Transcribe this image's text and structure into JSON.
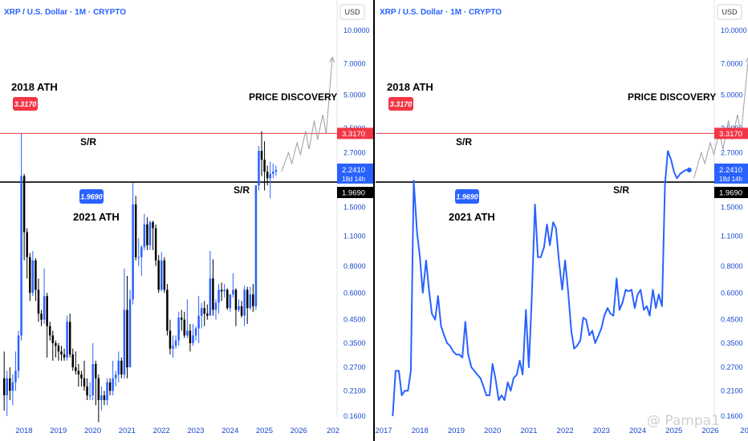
{
  "chart_data": [
    {
      "type": "candlestick",
      "title": "XRP / U.S. Dollar · 1M · CRYPTO",
      "currency": "USD",
      "yscale": "log",
      "ylim": [
        0.15,
        11.5
      ],
      "xlim": [
        2017.7,
        2026.9
      ],
      "y_ticks": [
        "10.0000",
        "7.0000",
        "5.0000",
        "3.5000",
        "2.7000",
        "2.1000",
        "1.5000",
        "1.1000",
        "0.8000",
        "0.6000",
        "0.4500",
        "0.3500",
        "0.2700",
        "0.2100",
        "0.1600"
      ],
      "x_ticks": [
        "2018",
        "2019",
        "2020",
        "2021",
        "2022",
        "2023",
        "2024",
        "2025",
        "2026",
        "202"
      ],
      "annotations": {
        "ath_2018": "2018 ATH",
        "ath_2018_value": "3.3170",
        "ath_2021": "2021 ATH",
        "ath_2021_value": "1.9690",
        "sr_upper": "S/R",
        "sr_lower": "S/R",
        "price_discovery": "PRICE DISCOVERY"
      },
      "price_labels": {
        "resistance": "3.3170",
        "current": "2.2410",
        "countdown": "18d 14h",
        "support": "1.9690"
      },
      "levels": {
        "resistance": 3.317,
        "support": 1.969,
        "current": 2.241
      },
      "candles": [
        {
          "o": 0.24,
          "h": 0.32,
          "l": 0.17,
          "c": 0.2
        },
        {
          "o": 0.2,
          "h": 0.26,
          "l": 0.16,
          "c": 0.24
        },
        {
          "o": 0.24,
          "h": 0.27,
          "l": 0.19,
          "c": 0.21
        },
        {
          "o": 0.21,
          "h": 0.25,
          "l": 0.18,
          "c": 0.23
        },
        {
          "o": 0.23,
          "h": 0.32,
          "l": 0.21,
          "c": 0.26
        },
        {
          "o": 0.26,
          "h": 0.4,
          "l": 0.24,
          "c": 0.38
        },
        {
          "o": 0.38,
          "h": 3.317,
          "l": 0.36,
          "c": 2.1
        },
        {
          "o": 2.1,
          "h": 2.15,
          "l": 0.85,
          "c": 1.15
        },
        {
          "o": 1.15,
          "h": 1.2,
          "l": 0.7,
          "c": 0.88
        },
        {
          "o": 0.88,
          "h": 0.92,
          "l": 0.55,
          "c": 0.6
        },
        {
          "o": 0.6,
          "h": 0.94,
          "l": 0.58,
          "c": 0.85
        },
        {
          "o": 0.85,
          "h": 0.87,
          "l": 0.55,
          "c": 0.62
        },
        {
          "o": 0.62,
          "h": 0.7,
          "l": 0.44,
          "c": 0.48
        },
        {
          "o": 0.48,
          "h": 0.5,
          "l": 0.42,
          "c": 0.45
        },
        {
          "o": 0.45,
          "h": 0.78,
          "l": 0.43,
          "c": 0.58
        },
        {
          "o": 0.58,
          "h": 0.6,
          "l": 0.3,
          "c": 0.42
        },
        {
          "o": 0.42,
          "h": 0.44,
          "l": 0.36,
          "c": 0.38
        },
        {
          "o": 0.38,
          "h": 0.4,
          "l": 0.29,
          "c": 0.35
        },
        {
          "o": 0.35,
          "h": 0.36,
          "l": 0.3,
          "c": 0.34
        },
        {
          "o": 0.34,
          "h": 0.35,
          "l": 0.29,
          "c": 0.32
        },
        {
          "o": 0.32,
          "h": 0.34,
          "l": 0.29,
          "c": 0.31
        },
        {
          "o": 0.31,
          "h": 0.33,
          "l": 0.29,
          "c": 0.3
        },
        {
          "o": 0.3,
          "h": 0.47,
          "l": 0.29,
          "c": 0.44
        },
        {
          "o": 0.44,
          "h": 0.48,
          "l": 0.3,
          "c": 0.31
        },
        {
          "o": 0.31,
          "h": 0.33,
          "l": 0.26,
          "c": 0.27
        },
        {
          "o": 0.27,
          "h": 0.32,
          "l": 0.25,
          "c": 0.26
        },
        {
          "o": 0.26,
          "h": 0.28,
          "l": 0.22,
          "c": 0.25
        },
        {
          "o": 0.25,
          "h": 0.26,
          "l": 0.22,
          "c": 0.24
        },
        {
          "o": 0.24,
          "h": 0.29,
          "l": 0.21,
          "c": 0.22
        },
        {
          "o": 0.22,
          "h": 0.24,
          "l": 0.19,
          "c": 0.2
        },
        {
          "o": 0.2,
          "h": 0.23,
          "l": 0.19,
          "c": 0.2
        },
        {
          "o": 0.2,
          "h": 0.35,
          "l": 0.19,
          "c": 0.28
        },
        {
          "o": 0.28,
          "h": 0.29,
          "l": 0.18,
          "c": 0.24
        },
        {
          "o": 0.24,
          "h": 0.25,
          "l": 0.15,
          "c": 0.19
        },
        {
          "o": 0.19,
          "h": 0.22,
          "l": 0.17,
          "c": 0.2
        },
        {
          "o": 0.2,
          "h": 0.21,
          "l": 0.18,
          "c": 0.19
        },
        {
          "o": 0.19,
          "h": 0.24,
          "l": 0.18,
          "c": 0.23
        },
        {
          "o": 0.23,
          "h": 0.24,
          "l": 0.2,
          "c": 0.21
        },
        {
          "o": 0.21,
          "h": 0.29,
          "l": 0.2,
          "c": 0.24
        },
        {
          "o": 0.24,
          "h": 0.26,
          "l": 0.22,
          "c": 0.25
        },
        {
          "o": 0.25,
          "h": 0.32,
          "l": 0.23,
          "c": 0.29
        },
        {
          "o": 0.29,
          "h": 0.3,
          "l": 0.24,
          "c": 0.25
        },
        {
          "o": 0.25,
          "h": 0.78,
          "l": 0.24,
          "c": 0.5
        },
        {
          "o": 0.5,
          "h": 0.72,
          "l": 0.24,
          "c": 0.27
        },
        {
          "o": 0.27,
          "h": 0.62,
          "l": 0.27,
          "c": 0.56
        },
        {
          "o": 0.56,
          "h": 1.95,
          "l": 0.53,
          "c": 1.55
        },
        {
          "o": 1.55,
          "h": 1.7,
          "l": 0.85,
          "c": 0.88
        },
        {
          "o": 0.88,
          "h": 1.08,
          "l": 0.8,
          "c": 0.88
        },
        {
          "o": 0.88,
          "h": 1.0,
          "l": 0.72,
          "c": 0.98
        },
        {
          "o": 0.98,
          "h": 1.4,
          "l": 0.95,
          "c": 1.25
        },
        {
          "o": 1.25,
          "h": 1.35,
          "l": 0.95,
          "c": 1.0
        },
        {
          "o": 1.0,
          "h": 1.3,
          "l": 0.95,
          "c": 1.28
        },
        {
          "o": 1.28,
          "h": 1.3,
          "l": 0.95,
          "c": 1.2
        },
        {
          "o": 1.2,
          "h": 1.25,
          "l": 0.8,
          "c": 0.85
        },
        {
          "o": 0.85,
          "h": 0.9,
          "l": 0.6,
          "c": 0.62
        },
        {
          "o": 0.62,
          "h": 0.93,
          "l": 0.61,
          "c": 0.85
        },
        {
          "o": 0.85,
          "h": 0.88,
          "l": 0.6,
          "c": 0.62
        },
        {
          "o": 0.62,
          "h": 0.66,
          "l": 0.38,
          "c": 0.4
        },
        {
          "o": 0.4,
          "h": 0.45,
          "l": 0.31,
          "c": 0.33
        },
        {
          "o": 0.33,
          "h": 0.38,
          "l": 0.3,
          "c": 0.34
        },
        {
          "o": 0.34,
          "h": 0.38,
          "l": 0.33,
          "c": 0.36
        },
        {
          "o": 0.36,
          "h": 0.49,
          "l": 0.34,
          "c": 0.46
        },
        {
          "o": 0.46,
          "h": 0.5,
          "l": 0.4,
          "c": 0.45
        },
        {
          "o": 0.45,
          "h": 0.49,
          "l": 0.37,
          "c": 0.38
        },
        {
          "o": 0.38,
          "h": 0.56,
          "l": 0.37,
          "c": 0.4
        },
        {
          "o": 0.4,
          "h": 0.43,
          "l": 0.32,
          "c": 0.35
        },
        {
          "o": 0.35,
          "h": 0.43,
          "l": 0.34,
          "c": 0.38
        },
        {
          "o": 0.38,
          "h": 0.42,
          "l": 0.36,
          "c": 0.41
        },
        {
          "o": 0.41,
          "h": 0.58,
          "l": 0.35,
          "c": 0.47
        },
        {
          "o": 0.47,
          "h": 0.54,
          "l": 0.41,
          "c": 0.51
        },
        {
          "o": 0.51,
          "h": 0.55,
          "l": 0.42,
          "c": 0.48
        },
        {
          "o": 0.48,
          "h": 0.53,
          "l": 0.45,
          "c": 0.47
        },
        {
          "o": 0.47,
          "h": 0.94,
          "l": 0.47,
          "c": 0.7
        },
        {
          "o": 0.7,
          "h": 0.86,
          "l": 0.47,
          "c": 0.5
        },
        {
          "o": 0.5,
          "h": 0.56,
          "l": 0.45,
          "c": 0.54
        },
        {
          "o": 0.54,
          "h": 0.66,
          "l": 0.48,
          "c": 0.62
        },
        {
          "o": 0.62,
          "h": 0.67,
          "l": 0.55,
          "c": 0.61
        },
        {
          "o": 0.61,
          "h": 0.66,
          "l": 0.57,
          "c": 0.62
        },
        {
          "o": 0.62,
          "h": 0.63,
          "l": 0.5,
          "c": 0.51
        },
        {
          "o": 0.51,
          "h": 0.59,
          "l": 0.49,
          "c": 0.59
        },
        {
          "o": 0.59,
          "h": 0.74,
          "l": 0.57,
          "c": 0.62
        },
        {
          "o": 0.62,
          "h": 0.63,
          "l": 0.42,
          "c": 0.5
        },
        {
          "o": 0.5,
          "h": 0.56,
          "l": 0.49,
          "c": 0.52
        },
        {
          "o": 0.52,
          "h": 0.55,
          "l": 0.46,
          "c": 0.47
        },
        {
          "o": 0.47,
          "h": 0.65,
          "l": 0.42,
          "c": 0.62
        },
        {
          "o": 0.62,
          "h": 0.64,
          "l": 0.43,
          "c": 0.51
        },
        {
          "o": 0.51,
          "h": 0.64,
          "l": 0.5,
          "c": 0.59
        },
        {
          "o": 0.59,
          "h": 0.66,
          "l": 0.49,
          "c": 0.52
        },
        {
          "o": 0.52,
          "h": 1.9,
          "l": 0.5,
          "c": 1.9
        },
        {
          "o": 1.9,
          "h": 2.9,
          "l": 1.8,
          "c": 2.75
        },
        {
          "o": 2.75,
          "h": 3.4,
          "l": 2.1,
          "c": 2.5
        },
        {
          "o": 2.5,
          "h": 3.05,
          "l": 1.8,
          "c": 2.2
        },
        {
          "o": 2.2,
          "h": 2.35,
          "l": 1.9,
          "c": 2.05
        },
        {
          "o": 2.05,
          "h": 2.45,
          "l": 1.65,
          "c": 2.15
        },
        {
          "o": 2.15,
          "h": 2.4,
          "l": 2.05,
          "c": 2.2
        },
        {
          "o": 2.2,
          "h": 2.35,
          "l": 2.1,
          "c": 2.24
        }
      ],
      "projection": [
        [
          2025.5,
          2.2
        ],
        [
          2025.7,
          2.7
        ],
        [
          2025.8,
          2.4
        ],
        [
          2025.95,
          3.0
        ],
        [
          2026.05,
          2.65
        ],
        [
          2026.2,
          3.4
        ],
        [
          2026.3,
          2.8
        ],
        [
          2026.45,
          3.8
        ],
        [
          2026.55,
          3.1
        ],
        [
          2026.7,
          4.05
        ],
        [
          2026.8,
          3.3
        ],
        [
          2026.98,
          7.5
        ]
      ]
    },
    {
      "type": "line",
      "title": "XRP / U.S. Dollar · 1M · CRYPTO",
      "currency": "USD",
      "yscale": "log",
      "ylim": [
        0.15,
        11.5
      ],
      "xlim": [
        2016.8,
        2026.85
      ],
      "y_ticks": [
        "10.0000",
        "7.0000",
        "5.0000",
        "3.5000",
        "2.7000",
        "2.1000",
        "1.5000",
        "1.1000",
        "0.8000",
        "0.6000",
        "0.4500",
        "0.3500",
        "0.2700",
        "0.2100",
        "0.1600"
      ],
      "x_ticks": [
        "2017",
        "2018",
        "2019",
        "2020",
        "2021",
        "2022",
        "2023",
        "2024",
        "2025",
        "2026",
        "202"
      ],
      "annotations": {
        "ath_2018": "2018 ATH",
        "ath_2018_value": "3.3170",
        "ath_2021": "2021 ATH",
        "ath_2021_value": "1.9690",
        "sr_upper": "S/R",
        "sr_lower": "S/R",
        "price_discovery": "PRICE DISCOVERY"
      },
      "price_labels": {
        "resistance": "3.3170",
        "current": "2.2410",
        "countdown": "18d 14h",
        "support": "1.9690"
      },
      "levels": {
        "resistance": 3.317,
        "support": 1.969,
        "current": 2.241
      },
      "series": [
        {
          "x": [
            2017.25,
            2017.33,
            2017.42,
            2017.5,
            2017.58,
            2017.67,
            2017.75,
            2017.83,
            2017.92,
            2018.0,
            2018.08,
            2018.17,
            2018.25,
            2018.33,
            2018.42,
            2018.5,
            2018.58,
            2018.67,
            2018.75,
            2018.83,
            2018.92,
            2019.0,
            2019.08,
            2019.17,
            2019.25,
            2019.33,
            2019.42,
            2019.5,
            2019.58,
            2019.67,
            2019.75,
            2019.83,
            2019.92,
            2020.0,
            2020.08,
            2020.17,
            2020.25,
            2020.33,
            2020.42,
            2020.5,
            2020.58,
            2020.67,
            2020.75,
            2020.83,
            2020.92,
            2021.0,
            2021.08,
            2021.17,
            2021.25,
            2021.33,
            2021.42,
            2021.5,
            2021.58,
            2021.67,
            2021.75,
            2021.83,
            2021.92,
            2022.0,
            2022.08,
            2022.17,
            2022.25,
            2022.33,
            2022.42,
            2022.5,
            2022.58,
            2022.67,
            2022.75,
            2022.83,
            2022.92,
            2023.0,
            2023.08,
            2023.17,
            2023.25,
            2023.33,
            2023.42,
            2023.5,
            2023.58,
            2023.67,
            2023.75,
            2023.83,
            2023.92,
            2024.0,
            2024.08,
            2024.17,
            2024.25,
            2024.33,
            2024.42,
            2024.5,
            2024.58,
            2024.67,
            2024.75,
            2024.83,
            2024.92,
            2025.0,
            2025.08,
            2025.17,
            2025.25,
            2025.33,
            2025.42
          ],
          "values": [
            0.16,
            0.26,
            0.26,
            0.2,
            0.21,
            0.21,
            0.26,
            2.0,
            1.15,
            0.88,
            0.6,
            0.85,
            0.62,
            0.48,
            0.45,
            0.58,
            0.42,
            0.38,
            0.35,
            0.34,
            0.32,
            0.31,
            0.31,
            0.3,
            0.44,
            0.31,
            0.27,
            0.26,
            0.25,
            0.24,
            0.22,
            0.2,
            0.2,
            0.28,
            0.24,
            0.19,
            0.2,
            0.19,
            0.23,
            0.21,
            0.24,
            0.25,
            0.29,
            0.25,
            0.5,
            0.27,
            0.56,
            1.55,
            0.88,
            0.88,
            0.98,
            1.25,
            1.0,
            1.28,
            1.2,
            0.85,
            0.62,
            0.85,
            0.62,
            0.4,
            0.33,
            0.34,
            0.36,
            0.46,
            0.45,
            0.38,
            0.4,
            0.35,
            0.38,
            0.41,
            0.47,
            0.51,
            0.48,
            0.47,
            0.7,
            0.5,
            0.54,
            0.62,
            0.61,
            0.62,
            0.51,
            0.59,
            0.62,
            0.5,
            0.52,
            0.47,
            0.62,
            0.51,
            0.59,
            0.52,
            1.9,
            2.75,
            2.5,
            2.2,
            2.05,
            2.15,
            2.2,
            2.241,
            2.241
          ]
        }
      ],
      "projection": [
        [
          2025.55,
          2.05
        ],
        [
          2025.75,
          2.7
        ],
        [
          2025.85,
          2.4
        ],
        [
          2026.0,
          3.0
        ],
        [
          2026.1,
          2.65
        ],
        [
          2026.25,
          3.4
        ],
        [
          2026.35,
          2.8
        ],
        [
          2026.5,
          3.8
        ],
        [
          2026.6,
          3.1
        ],
        [
          2026.75,
          4.05
        ],
        [
          2026.85,
          3.3
        ],
        [
          2027.05,
          7.5
        ]
      ]
    }
  ],
  "watermark": "@ Pampa1",
  "colors": {
    "blue": "#2962ff",
    "up": "#2962ff",
    "down": "#000000",
    "red": "#f23645",
    "support": "#000000",
    "resistance": "#f23645"
  }
}
